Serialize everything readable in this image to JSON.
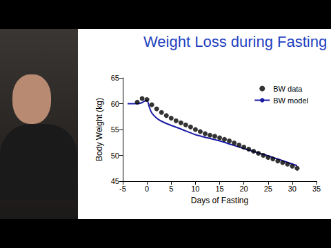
{
  "chart_data": {
    "type": "scatter",
    "title": "Weight Loss during Fasting",
    "x_label": "Days of Fasting",
    "y_label": "Body Weight (kg)",
    "xlim": [
      -5,
      35
    ],
    "xticks": [
      -5,
      0,
      5,
      10,
      15,
      20,
      25,
      30,
      35
    ],
    "ylim": [
      45,
      65
    ],
    "yticks": [
      45,
      50,
      55,
      60,
      65
    ],
    "grid": false,
    "legend": "upper right",
    "color": "#1f3fbf",
    "series": [
      {
        "name": "BW data",
        "type": "scatter",
        "color": "#000000",
        "marker": "circle",
        "x": [
          -2,
          -1,
          0,
          1,
          2,
          3,
          4,
          5,
          6,
          7,
          8,
          9,
          10,
          11,
          12,
          13,
          14,
          15,
          16,
          17,
          18,
          19,
          20,
          21,
          22,
          23,
          24,
          25,
          26,
          27,
          28,
          29,
          30,
          31
        ],
        "values": [
          60.3,
          61.0,
          60.8,
          59.8,
          59.0,
          58.3,
          57.7,
          57.2,
          56.7,
          56.3,
          55.9,
          55.5,
          55.0,
          54.6,
          54.2,
          53.9,
          53.7,
          53.4,
          53.1,
          52.8,
          52.4,
          52.0,
          51.6,
          51.2,
          50.8,
          50.4,
          50.0,
          49.6,
          49.3,
          48.9,
          48.6,
          48.3,
          47.9,
          47.5
        ]
      },
      {
        "name": "BW model",
        "type": "line",
        "color": "#1a1aa6",
        "line_style": "solid",
        "x": [
          -4,
          -2,
          -1,
          -0.5,
          0,
          0.5,
          1,
          2,
          3,
          5,
          7,
          10,
          15,
          20,
          25,
          31
        ],
        "values": [
          60.0,
          60.0,
          60.2,
          60.5,
          60.6,
          59.3,
          58.2,
          57.2,
          56.6,
          55.8,
          55.1,
          54.0,
          52.8,
          51.3,
          49.9,
          48.0
        ]
      }
    ]
  }
}
